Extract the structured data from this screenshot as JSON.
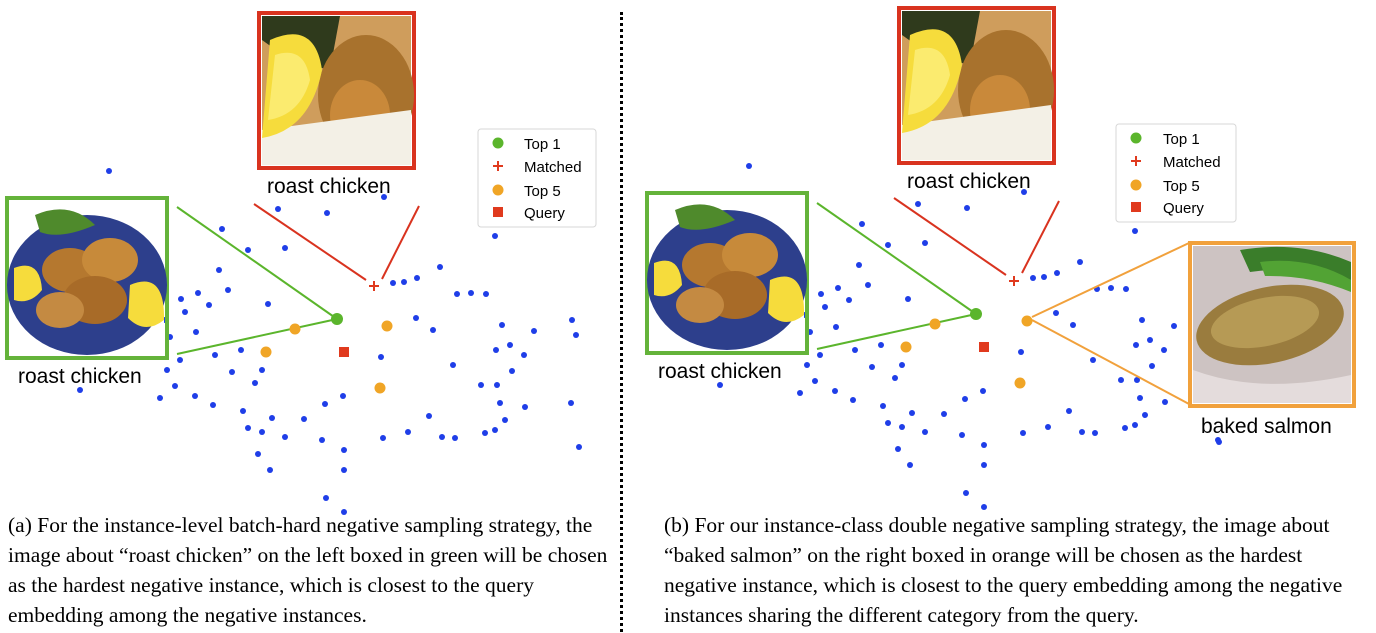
{
  "panel_a": {
    "label_top": "roast chicken",
    "label_left": "roast chicken",
    "caption": "(a) For the instance-level batch-hard negative sampling strategy, the image about “roast chicken” on the left boxed in green will be chosen as the hardest negative instance, which is closest to the query embedding among the negative instances."
  },
  "panel_b": {
    "label_top": "roast chicken",
    "label_left": "roast chicken",
    "label_right": "baked salmon",
    "caption": "(b) For our instance-class double negative sampling strategy, the image about “baked salmon” on the right boxed in orange will be chosen as the hardest negative instance, which is closest to the query embedding among the negative instances sharing the different category from the query."
  },
  "legend": {
    "top1": "Top 1",
    "matched": "Matched",
    "top5": "Top 5",
    "query": "Query"
  },
  "colors": {
    "background_points": "#1f3ee8",
    "top1": "#5bb52c",
    "matched": "#e03a1e",
    "top5": "#f0a526",
    "query": "#e03a1e",
    "box_green": "#64b33a",
    "box_red": "#d9331f",
    "box_orange": "#f1a13c"
  }
}
